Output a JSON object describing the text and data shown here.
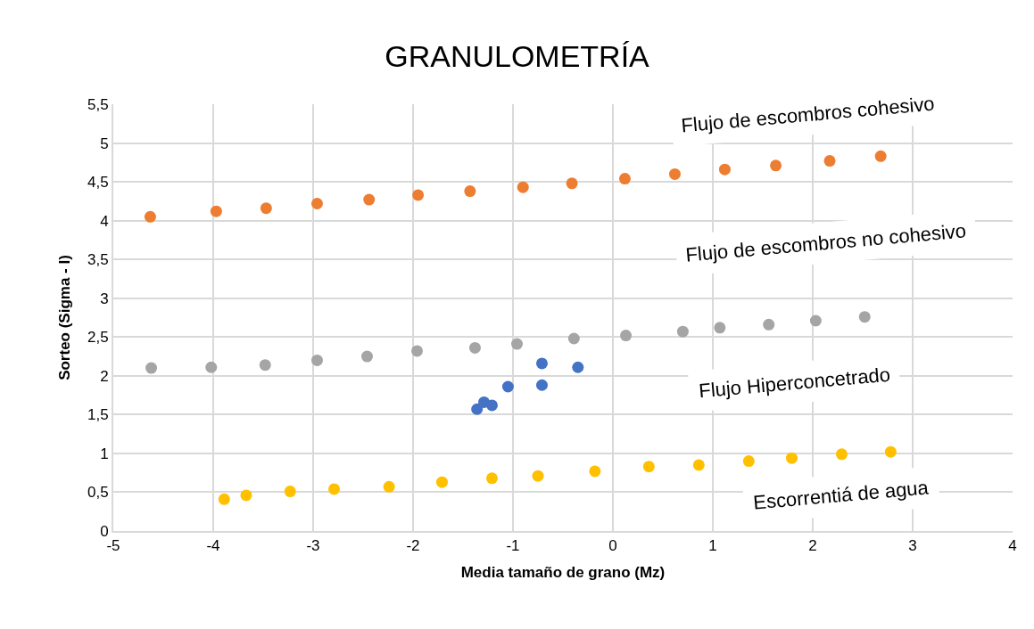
{
  "chart_data": {
    "type": "scatter",
    "title": "GRANULOMETRÍA",
    "xlabel": "Media tamaño de grano (Mz)",
    "ylabel": "Sorteo (Sigma - I)",
    "xlim": [
      -5,
      4
    ],
    "xticks": [
      -5,
      -4,
      -3,
      -2,
      -1,
      0,
      1,
      2,
      3,
      4
    ],
    "ylim": [
      0,
      5.5
    ],
    "yticks": [
      {
        "value": 0,
        "label": "0"
      },
      {
        "value": 0.5,
        "label": "0,5"
      },
      {
        "value": 1,
        "label": "1"
      },
      {
        "value": 1.5,
        "label": "1,5"
      },
      {
        "value": 2,
        "label": "2"
      },
      {
        "value": 2.5,
        "label": "2,5"
      },
      {
        "value": 3,
        "label": "3"
      },
      {
        "value": 3.5,
        "label": "3,5"
      },
      {
        "value": 4,
        "label": "4"
      },
      {
        "value": 4.5,
        "label": "4,5"
      },
      {
        "value": 5,
        "label": "5"
      },
      {
        "value": 5.5,
        "label": "5,5"
      }
    ],
    "grid": true,
    "marker": "circle",
    "annotations": [
      "Flujo de escombros cohesivo",
      "Flujo de escombros no cohesivo",
      "Flujo Hiperconcetrado",
      "Escorrentiá de agua"
    ],
    "series": [
      {
        "color": "#ed7d31",
        "x": [
          -4.63,
          -3.97,
          -3.47,
          -2.96,
          -2.44,
          -1.95,
          -1.43,
          -0.9,
          -0.41,
          0.12,
          0.62,
          1.12,
          1.63,
          2.17,
          2.68
        ],
        "values": [
          4.05,
          4.12,
          4.16,
          4.22,
          4.27,
          4.33,
          4.38,
          4.43,
          4.48,
          4.54,
          4.6,
          4.66,
          4.71,
          4.77,
          4.83
        ]
      },
      {
        "color": "#a5a5a5",
        "x": [
          -4.62,
          -4.02,
          -3.48,
          -2.96,
          -2.46,
          -1.96,
          -1.38,
          -0.96,
          -0.39,
          0.13,
          0.7,
          1.07,
          1.56,
          2.03,
          2.52
        ],
        "values": [
          2.1,
          2.11,
          2.14,
          2.2,
          2.25,
          2.32,
          2.36,
          2.41,
          2.48,
          2.52,
          2.57,
          2.62,
          2.66,
          2.71,
          2.76
        ]
      },
      {
        "color": "#4472c4",
        "x": [
          -1.36,
          -1.29,
          -1.21,
          -1.05,
          -0.71,
          -0.71,
          -0.35
        ],
        "values": [
          1.57,
          1.66,
          1.62,
          1.86,
          2.16,
          1.88,
          2.11
        ]
      },
      {
        "color": "#ffc000",
        "x": [
          -3.89,
          -3.67,
          -3.23,
          -2.79,
          -2.24,
          -1.71,
          -1.21,
          -0.75,
          -0.18,
          0.36,
          0.86,
          1.36,
          1.79,
          2.29,
          2.78
        ],
        "values": [
          0.41,
          0.46,
          0.51,
          0.54,
          0.57,
          0.63,
          0.68,
          0.71,
          0.77,
          0.83,
          0.85,
          0.9,
          0.94,
          0.99,
          1.02
        ]
      }
    ]
  }
}
